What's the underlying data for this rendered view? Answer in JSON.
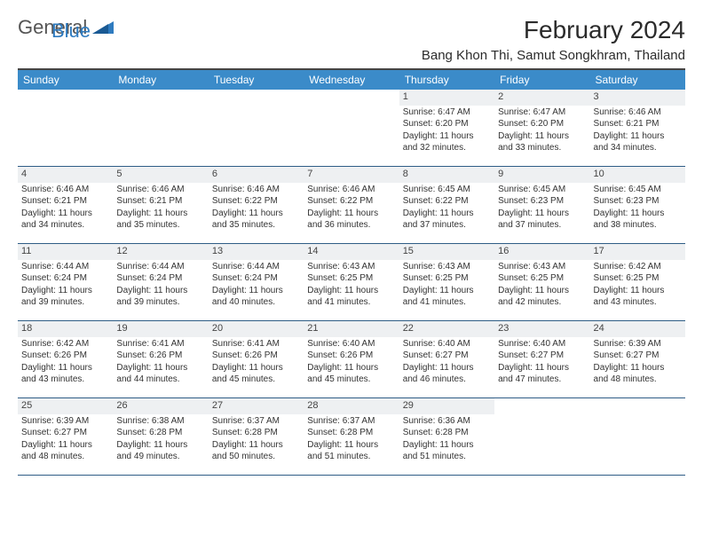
{
  "logo": {
    "part1": "General",
    "part2": "Blue"
  },
  "title": "February 2024",
  "location": "Bang Khon Thi, Samut Songkhram, Thailand",
  "colors": {
    "header_bg": "#3b8bc9",
    "header_text": "#ffffff",
    "rule": "#2f5d86",
    "daynum_bg": "#eef0f2",
    "body_text": "#333333",
    "logo_accent": "#2f7bbf"
  },
  "weekdays": [
    "Sunday",
    "Monday",
    "Tuesday",
    "Wednesday",
    "Thursday",
    "Friday",
    "Saturday"
  ],
  "weeks": [
    [
      {
        "n": "",
        "sr": "",
        "ss": "",
        "dl1": "",
        "dl2": ""
      },
      {
        "n": "",
        "sr": "",
        "ss": "",
        "dl1": "",
        "dl2": ""
      },
      {
        "n": "",
        "sr": "",
        "ss": "",
        "dl1": "",
        "dl2": ""
      },
      {
        "n": "",
        "sr": "",
        "ss": "",
        "dl1": "",
        "dl2": ""
      },
      {
        "n": "1",
        "sr": "Sunrise: 6:47 AM",
        "ss": "Sunset: 6:20 PM",
        "dl1": "Daylight: 11 hours",
        "dl2": "and 32 minutes."
      },
      {
        "n": "2",
        "sr": "Sunrise: 6:47 AM",
        "ss": "Sunset: 6:20 PM",
        "dl1": "Daylight: 11 hours",
        "dl2": "and 33 minutes."
      },
      {
        "n": "3",
        "sr": "Sunrise: 6:46 AM",
        "ss": "Sunset: 6:21 PM",
        "dl1": "Daylight: 11 hours",
        "dl2": "and 34 minutes."
      }
    ],
    [
      {
        "n": "4",
        "sr": "Sunrise: 6:46 AM",
        "ss": "Sunset: 6:21 PM",
        "dl1": "Daylight: 11 hours",
        "dl2": "and 34 minutes."
      },
      {
        "n": "5",
        "sr": "Sunrise: 6:46 AM",
        "ss": "Sunset: 6:21 PM",
        "dl1": "Daylight: 11 hours",
        "dl2": "and 35 minutes."
      },
      {
        "n": "6",
        "sr": "Sunrise: 6:46 AM",
        "ss": "Sunset: 6:22 PM",
        "dl1": "Daylight: 11 hours",
        "dl2": "and 35 minutes."
      },
      {
        "n": "7",
        "sr": "Sunrise: 6:46 AM",
        "ss": "Sunset: 6:22 PM",
        "dl1": "Daylight: 11 hours",
        "dl2": "and 36 minutes."
      },
      {
        "n": "8",
        "sr": "Sunrise: 6:45 AM",
        "ss": "Sunset: 6:22 PM",
        "dl1": "Daylight: 11 hours",
        "dl2": "and 37 minutes."
      },
      {
        "n": "9",
        "sr": "Sunrise: 6:45 AM",
        "ss": "Sunset: 6:23 PM",
        "dl1": "Daylight: 11 hours",
        "dl2": "and 37 minutes."
      },
      {
        "n": "10",
        "sr": "Sunrise: 6:45 AM",
        "ss": "Sunset: 6:23 PM",
        "dl1": "Daylight: 11 hours",
        "dl2": "and 38 minutes."
      }
    ],
    [
      {
        "n": "11",
        "sr": "Sunrise: 6:44 AM",
        "ss": "Sunset: 6:24 PM",
        "dl1": "Daylight: 11 hours",
        "dl2": "and 39 minutes."
      },
      {
        "n": "12",
        "sr": "Sunrise: 6:44 AM",
        "ss": "Sunset: 6:24 PM",
        "dl1": "Daylight: 11 hours",
        "dl2": "and 39 minutes."
      },
      {
        "n": "13",
        "sr": "Sunrise: 6:44 AM",
        "ss": "Sunset: 6:24 PM",
        "dl1": "Daylight: 11 hours",
        "dl2": "and 40 minutes."
      },
      {
        "n": "14",
        "sr": "Sunrise: 6:43 AM",
        "ss": "Sunset: 6:25 PM",
        "dl1": "Daylight: 11 hours",
        "dl2": "and 41 minutes."
      },
      {
        "n": "15",
        "sr": "Sunrise: 6:43 AM",
        "ss": "Sunset: 6:25 PM",
        "dl1": "Daylight: 11 hours",
        "dl2": "and 41 minutes."
      },
      {
        "n": "16",
        "sr": "Sunrise: 6:43 AM",
        "ss": "Sunset: 6:25 PM",
        "dl1": "Daylight: 11 hours",
        "dl2": "and 42 minutes."
      },
      {
        "n": "17",
        "sr": "Sunrise: 6:42 AM",
        "ss": "Sunset: 6:25 PM",
        "dl1": "Daylight: 11 hours",
        "dl2": "and 43 minutes."
      }
    ],
    [
      {
        "n": "18",
        "sr": "Sunrise: 6:42 AM",
        "ss": "Sunset: 6:26 PM",
        "dl1": "Daylight: 11 hours",
        "dl2": "and 43 minutes."
      },
      {
        "n": "19",
        "sr": "Sunrise: 6:41 AM",
        "ss": "Sunset: 6:26 PM",
        "dl1": "Daylight: 11 hours",
        "dl2": "and 44 minutes."
      },
      {
        "n": "20",
        "sr": "Sunrise: 6:41 AM",
        "ss": "Sunset: 6:26 PM",
        "dl1": "Daylight: 11 hours",
        "dl2": "and 45 minutes."
      },
      {
        "n": "21",
        "sr": "Sunrise: 6:40 AM",
        "ss": "Sunset: 6:26 PM",
        "dl1": "Daylight: 11 hours",
        "dl2": "and 45 minutes."
      },
      {
        "n": "22",
        "sr": "Sunrise: 6:40 AM",
        "ss": "Sunset: 6:27 PM",
        "dl1": "Daylight: 11 hours",
        "dl2": "and 46 minutes."
      },
      {
        "n": "23",
        "sr": "Sunrise: 6:40 AM",
        "ss": "Sunset: 6:27 PM",
        "dl1": "Daylight: 11 hours",
        "dl2": "and 47 minutes."
      },
      {
        "n": "24",
        "sr": "Sunrise: 6:39 AM",
        "ss": "Sunset: 6:27 PM",
        "dl1": "Daylight: 11 hours",
        "dl2": "and 48 minutes."
      }
    ],
    [
      {
        "n": "25",
        "sr": "Sunrise: 6:39 AM",
        "ss": "Sunset: 6:27 PM",
        "dl1": "Daylight: 11 hours",
        "dl2": "and 48 minutes."
      },
      {
        "n": "26",
        "sr": "Sunrise: 6:38 AM",
        "ss": "Sunset: 6:28 PM",
        "dl1": "Daylight: 11 hours",
        "dl2": "and 49 minutes."
      },
      {
        "n": "27",
        "sr": "Sunrise: 6:37 AM",
        "ss": "Sunset: 6:28 PM",
        "dl1": "Daylight: 11 hours",
        "dl2": "and 50 minutes."
      },
      {
        "n": "28",
        "sr": "Sunrise: 6:37 AM",
        "ss": "Sunset: 6:28 PM",
        "dl1": "Daylight: 11 hours",
        "dl2": "and 51 minutes."
      },
      {
        "n": "29",
        "sr": "Sunrise: 6:36 AM",
        "ss": "Sunset: 6:28 PM",
        "dl1": "Daylight: 11 hours",
        "dl2": "and 51 minutes."
      },
      {
        "n": "",
        "sr": "",
        "ss": "",
        "dl1": "",
        "dl2": ""
      },
      {
        "n": "",
        "sr": "",
        "ss": "",
        "dl1": "",
        "dl2": ""
      }
    ]
  ]
}
